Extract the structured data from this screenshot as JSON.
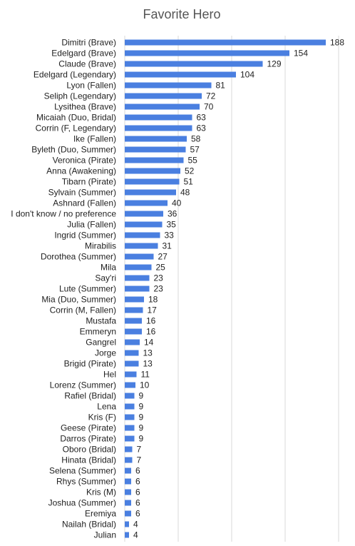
{
  "chart_data": {
    "type": "bar",
    "orientation": "horizontal",
    "title": "Favorite Hero",
    "categories": [
      "Dimitri (Brave)",
      "Edelgard (Brave)",
      "Claude (Brave)",
      "Edelgard (Legendary)",
      "Lyon (Fallen)",
      "Seliph (Legendary)",
      "Lysithea (Brave)",
      "Micaiah (Duo, Bridal)",
      "Corrin (F, Legendary)",
      "Ike (Fallen)",
      "Byleth (Duo, Summer)",
      "Veronica (Pirate)",
      "Anna (Awakening)",
      "Tibarn (Pirate)",
      "Sylvain (Summer)",
      "Ashnard (Fallen)",
      "I don't know / no preference",
      "Julia (Fallen)",
      "Ingrid (Summer)",
      "Mirabilis",
      "Dorothea (Summer)",
      "Mila",
      "Say'ri",
      "Lute (Summer)",
      "Mia (Duo, Summer)",
      "Corrin (M, Fallen)",
      "Mustafa",
      "Emmeryn",
      "Gangrel",
      "Jorge",
      "Brigid (Pirate)",
      "Hel",
      "Lorenz (Summer)",
      "Rafiel (Bridal)",
      "Lena",
      "Kris (F)",
      "Geese (Pirate)",
      "Darros (Pirate)",
      "Oboro (Bridal)",
      "Hinata (Bridal)",
      "Selena (Summer)",
      "Rhys (Summer)",
      "Kris (M)",
      "Joshua (Summer)",
      "Eremiya",
      "Nailah (Bridal)",
      "Julian"
    ],
    "values": [
      188,
      154,
      129,
      104,
      81,
      72,
      70,
      63,
      63,
      58,
      57,
      55,
      52,
      51,
      48,
      40,
      36,
      35,
      33,
      31,
      27,
      25,
      23,
      23,
      18,
      17,
      16,
      16,
      14,
      13,
      13,
      11,
      10,
      9,
      9,
      9,
      9,
      9,
      7,
      7,
      6,
      6,
      6,
      6,
      6,
      4,
      4
    ],
    "color": "#4a7fe0",
    "xlim": [
      0,
      200
    ],
    "xticks": [
      0,
      50,
      100,
      150,
      200
    ],
    "grid": true
  }
}
